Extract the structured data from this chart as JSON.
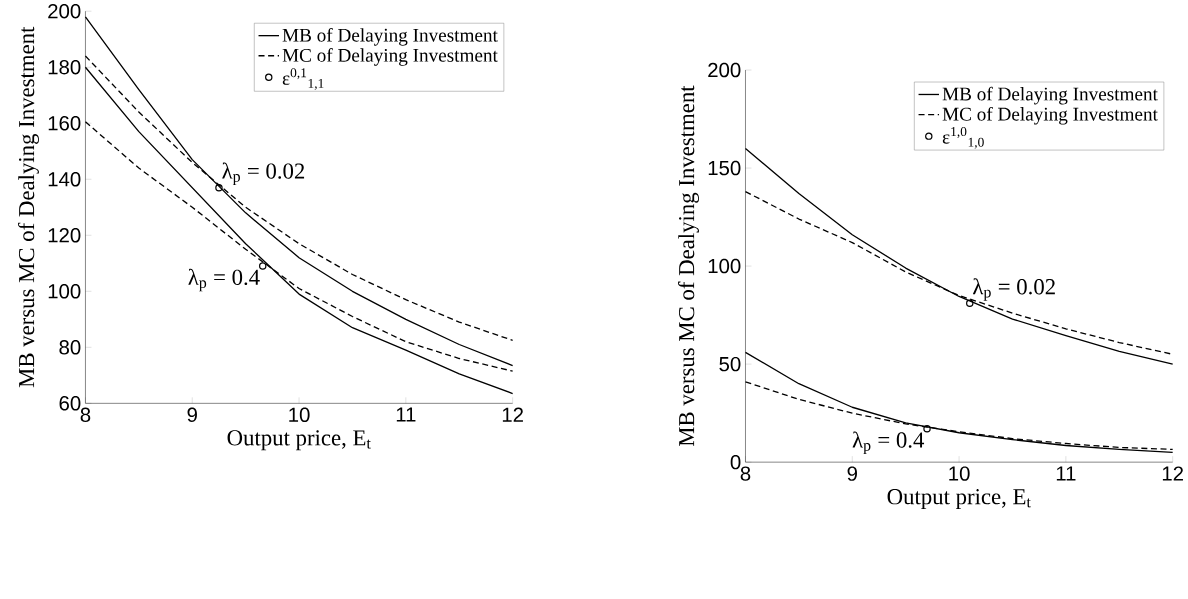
{
  "chart_data": [
    {
      "type": "line",
      "xlabel": "Output price, E$_{t}$",
      "ylabel": "MB versus MC of Dealying Investment",
      "xlim": [
        8,
        12
      ],
      "ylim": [
        60,
        200
      ],
      "xticks": [
        8,
        9,
        10,
        11,
        12
      ],
      "yticks": [
        60,
        80,
        100,
        120,
        140,
        160,
        180,
        200
      ],
      "legend": "top right",
      "series": [
        {
          "name": "MB of Delaying Investment",
          "color": "#000000",
          "line_style": "solid",
          "x": [
            8,
            8.5,
            9,
            9.5,
            10,
            10.5,
            11,
            11.5,
            12
          ],
          "values": [
            198,
            172,
            147,
            128,
            112,
            100,
            90,
            81,
            73.5
          ]
        },
        {
          "color": "#000000",
          "line_style": "solid",
          "x": [
            8,
            8.5,
            9,
            9.5,
            10,
            10.5,
            11,
            11.5,
            12
          ],
          "values": [
            180,
            157,
            137,
            117,
            99,
            87,
            79,
            70.5,
            63.5
          ]
        },
        {
          "name": "MC of Delaying Investment",
          "color": "#000000",
          "line_style": "dashed",
          "x": [
            8,
            8.5,
            9,
            9.5,
            10,
            10.5,
            11,
            11.5,
            12
          ],
          "values": [
            184,
            164,
            146,
            130,
            117,
            106,
            97,
            89,
            82.5
          ]
        },
        {
          "color": "#000000",
          "line_style": "dashed",
          "x": [
            8,
            8.5,
            9,
            9.5,
            10,
            10.5,
            11,
            11.5,
            12
          ],
          "values": [
            160.5,
            144,
            130,
            115,
            101,
            91,
            82,
            76,
            71.5
          ]
        },
        {
          "name": "ε$^{0,1}$$_{1,1}$",
          "type": "scatter",
          "marker": "circle",
          "color": "#000000",
          "x": [
            9.25,
            9.66
          ],
          "values": [
            137,
            109
          ]
        }
      ],
      "annotations": [
        {
          "text": "λ$_{p}$ = 0.02",
          "x": 9.25,
          "y": 137
        },
        {
          "text": "λ$_{p}$ = 0.4",
          "x": 9.66,
          "y": 109
        }
      ]
    },
    {
      "type": "line",
      "xlabel": "Output price, E$_{t}$",
      "ylabel": "MB versus MC of Dealying Investment",
      "xlim": [
        8,
        12
      ],
      "ylim": [
        0,
        200
      ],
      "xticks": [
        8,
        9,
        10,
        11,
        12
      ],
      "yticks": [
        0,
        50,
        100,
        150,
        200
      ],
      "legend": "top right",
      "series": [
        {
          "name": "MB of Delaying Investment",
          "color": "#000000",
          "line_style": "solid",
          "x": [
            8,
            8.5,
            9,
            9.5,
            10,
            10.5,
            11,
            11.5,
            12
          ],
          "values": [
            160,
            137,
            116,
            99,
            84.5,
            73,
            64.5,
            56.5,
            50
          ]
        },
        {
          "color": "#000000",
          "line_style": "solid",
          "x": [
            8,
            8.5,
            9,
            9.5,
            10,
            10.5,
            11,
            11.5,
            12
          ],
          "values": [
            56,
            40,
            28,
            20,
            15,
            11.5,
            8.5,
            6.5,
            5
          ]
        },
        {
          "name": "MC of Delaying Investment",
          "color": "#000000",
          "line_style": "dashed",
          "x": [
            8,
            8.5,
            9,
            9.5,
            10,
            10.5,
            11,
            11.5,
            12
          ],
          "values": [
            138,
            124,
            112,
            97,
            85,
            76,
            68,
            61,
            55
          ]
        },
        {
          "color": "#000000",
          "line_style": "dashed",
          "x": [
            8,
            8.5,
            9,
            9.5,
            10,
            10.5,
            11,
            11.5,
            12
          ],
          "values": [
            41,
            32,
            25,
            19.5,
            15.5,
            12,
            9.5,
            7.5,
            6.5
          ]
        },
        {
          "name": "ε$^{1,0}$$_{1,0}$",
          "type": "scatter",
          "marker": "circle",
          "color": "#000000",
          "x": [
            10.1,
            9.7
          ],
          "values": [
            81,
            17
          ]
        }
      ],
      "annotations": [
        {
          "text": "λ$_{p}$ = 0.02",
          "x": 10.1,
          "y": 81
        },
        {
          "text": "λ$_{p}$ = 0.4",
          "x": 9.7,
          "y": 17
        }
      ]
    }
  ]
}
